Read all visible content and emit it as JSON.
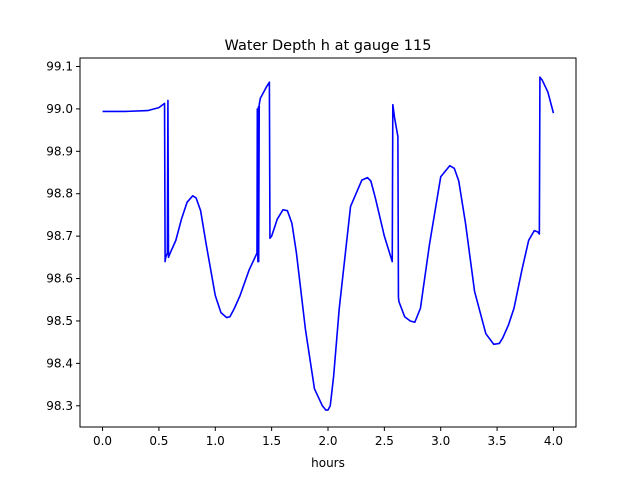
{
  "chart_data": {
    "type": "line",
    "title": "Water Depth h at gauge 115",
    "xlabel": "hours",
    "ylabel": "",
    "xlim": [
      -0.2,
      4.2
    ],
    "ylim": [
      98.25,
      99.12
    ],
    "grid": false,
    "x_ticks": [
      0.0,
      0.5,
      1.0,
      1.5,
      2.0,
      2.5,
      3.0,
      3.5,
      4.0
    ],
    "x_tick_labels": [
      "0.0",
      "0.5",
      "1.0",
      "1.5",
      "2.0",
      "2.5",
      "3.0",
      "3.5",
      "4.0"
    ],
    "y_ticks": [
      98.3,
      98.4,
      98.5,
      98.6,
      98.7,
      98.8,
      98.9,
      99.0,
      99.1
    ],
    "y_tick_labels": [
      "98.3",
      "98.4",
      "98.5",
      "98.6",
      "98.7",
      "98.8",
      "98.9",
      "99.0",
      "99.1"
    ],
    "series": [
      {
        "color": "#0000ff",
        "x": [
          0.0,
          0.2,
          0.4,
          0.5,
          0.55,
          0.555,
          0.56,
          0.575,
          0.58,
          0.585,
          0.6,
          0.65,
          0.7,
          0.75,
          0.8,
          0.83,
          0.87,
          0.92,
          1.0,
          1.05,
          1.1,
          1.13,
          1.17,
          1.22,
          1.3,
          1.37,
          1.373,
          1.378,
          1.383,
          1.385,
          1.39,
          1.393,
          1.4,
          1.45,
          1.48,
          1.485,
          1.5,
          1.55,
          1.6,
          1.64,
          1.68,
          1.72,
          1.8,
          1.88,
          1.95,
          1.98,
          2.0,
          2.02,
          2.05,
          2.1,
          2.2,
          2.3,
          2.35,
          2.38,
          2.42,
          2.5,
          2.57,
          2.575,
          2.59,
          2.62,
          2.625,
          2.63,
          2.68,
          2.73,
          2.77,
          2.82,
          2.9,
          3.0,
          3.08,
          3.12,
          3.16,
          3.22,
          3.3,
          3.4,
          3.47,
          3.52,
          3.55,
          3.6,
          3.65,
          3.72,
          3.78,
          3.83,
          3.86,
          3.875,
          3.88,
          3.9,
          3.95,
          4.0
        ],
        "y": [
          98.994,
          98.994,
          98.996,
          99.003,
          99.013,
          98.64,
          98.65,
          98.66,
          99.02,
          98.65,
          98.66,
          98.69,
          98.74,
          98.78,
          98.795,
          98.79,
          98.76,
          98.68,
          98.56,
          98.52,
          98.508,
          98.51,
          98.53,
          98.56,
          98.62,
          98.66,
          99.0,
          98.64,
          99.005,
          98.64,
          99.01,
          99.015,
          99.025,
          99.05,
          99.063,
          98.695,
          98.7,
          98.74,
          98.762,
          98.76,
          98.73,
          98.66,
          98.48,
          98.34,
          98.3,
          98.29,
          98.29,
          98.3,
          98.37,
          98.53,
          98.77,
          98.832,
          98.838,
          98.83,
          98.79,
          98.7,
          98.64,
          99.01,
          98.98,
          98.935,
          98.555,
          98.545,
          98.51,
          98.5,
          98.497,
          98.53,
          98.68,
          98.84,
          98.866,
          98.86,
          98.83,
          98.73,
          98.57,
          98.47,
          98.445,
          98.447,
          98.46,
          98.49,
          98.53,
          98.62,
          98.69,
          98.713,
          98.71,
          98.705,
          99.075,
          99.068,
          99.04,
          98.99
        ]
      }
    ]
  }
}
